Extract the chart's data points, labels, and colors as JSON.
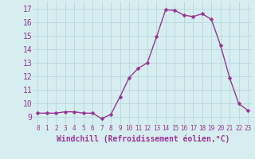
{
  "x": [
    0,
    1,
    2,
    3,
    4,
    5,
    6,
    7,
    8,
    9,
    10,
    11,
    12,
    13,
    14,
    15,
    16,
    17,
    18,
    19,
    20,
    21,
    22,
    23
  ],
  "y": [
    9.3,
    9.3,
    9.3,
    9.4,
    9.4,
    9.3,
    9.3,
    8.9,
    9.2,
    10.5,
    11.9,
    12.6,
    13.0,
    14.9,
    16.9,
    16.85,
    16.5,
    16.4,
    16.6,
    16.2,
    14.3,
    11.9,
    10.0,
    9.5
  ],
  "xlim": [
    -0.5,
    23.5
  ],
  "ylim": [
    8.5,
    17.5
  ],
  "yticks": [
    9,
    10,
    11,
    12,
    13,
    14,
    15,
    16,
    17
  ],
  "xticks": [
    0,
    1,
    2,
    3,
    4,
    5,
    6,
    7,
    8,
    9,
    10,
    11,
    12,
    13,
    14,
    15,
    16,
    17,
    18,
    19,
    20,
    21,
    22,
    23
  ],
  "xlabel": "Windchill (Refroidissement éolien,°C)",
  "line_color": "#993399",
  "marker": "D",
  "marker_size": 2.5,
  "bg_color": "#d6eef0",
  "grid_color": "#b8d8dc",
  "tick_color": "#993399",
  "label_color": "#993399",
  "xlabel_fontsize": 7,
  "ytick_fontsize": 7,
  "xtick_fontsize": 5.5
}
